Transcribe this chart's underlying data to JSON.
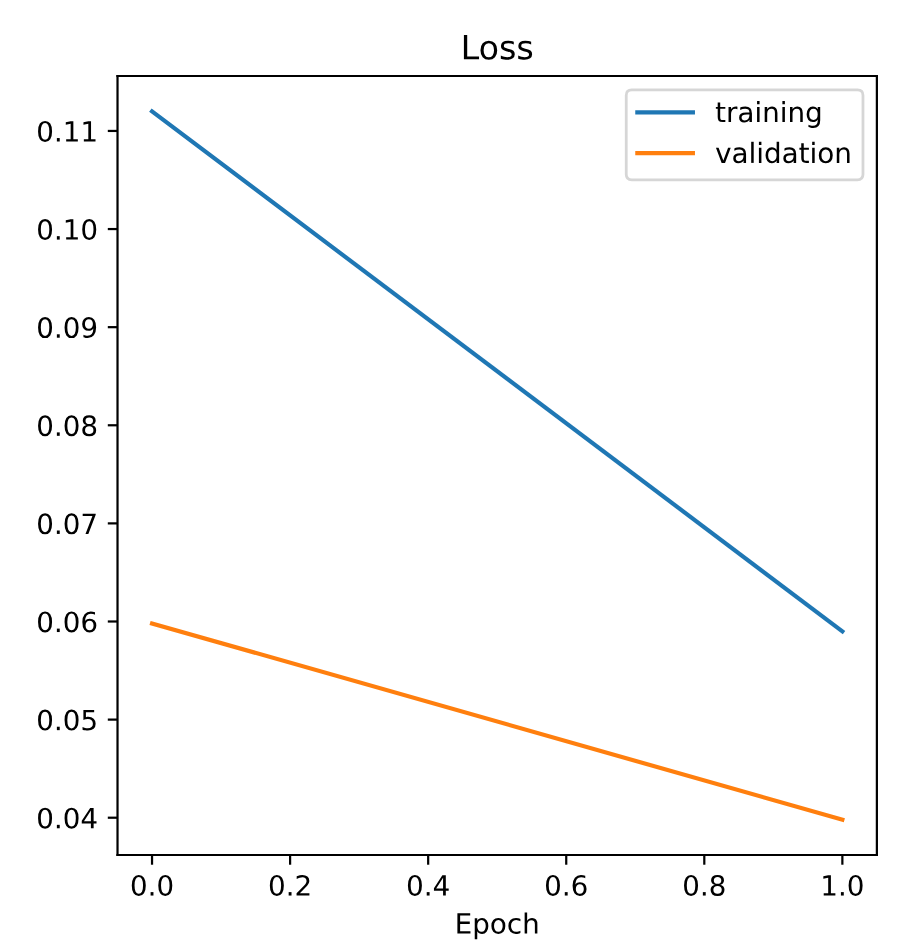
{
  "chart_data": {
    "type": "line",
    "title": "Loss",
    "xlabel": "Epoch",
    "x": [
      0.0,
      1.0
    ],
    "series": [
      {
        "name": "training",
        "color": "#1f77b4",
        "values": [
          0.112,
          0.059
        ]
      },
      {
        "name": "validation",
        "color": "#ff7f0e",
        "values": [
          0.0598,
          0.0398
        ]
      }
    ],
    "xlim": [
      -0.05,
      1.05
    ],
    "xticks": [
      {
        "value": 0,
        "label": "0.0"
      },
      0.2,
      0.4,
      0.6,
      0.8,
      {
        "value": 1,
        "label": "1.0"
      }
    ],
    "ylim": [
      0.0362,
      0.1156
    ],
    "yticks": [
      0.04,
      0.05,
      0.06,
      0.07,
      0.08,
      0.09,
      {
        "value": 0.1,
        "label": "0.10"
      },
      0.11
    ],
    "legend": "top right",
    "grid": false
  }
}
